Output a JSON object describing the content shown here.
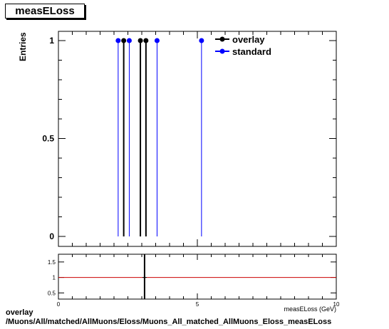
{
  "chart_data": [
    {
      "type": "scatter",
      "title": "measELoss",
      "ylabel": "Entries",
      "xlim": [
        0,
        10
      ],
      "ylim": [
        0,
        1.05
      ],
      "yticks": [
        0,
        0.5,
        1
      ],
      "ytick_labels": [
        "0",
        "0.5",
        "1"
      ],
      "legend": {
        "position": "top-right"
      },
      "series": [
        {
          "name": "overlay",
          "color": "#000000",
          "x": [
            2.35,
            2.95,
            3.15
          ],
          "y": [
            1,
            1,
            1
          ]
        },
        {
          "name": "standard",
          "color": "#0000ff",
          "x": [
            2.15,
            2.55,
            3.55,
            5.15
          ],
          "y": [
            1,
            1,
            1,
            1
          ]
        }
      ]
    },
    {
      "type": "line",
      "xlabel": "measELoss (GeV)",
      "xlim": [
        0,
        10
      ],
      "ylim": [
        0.3,
        1.75
      ],
      "xticks": [
        0,
        5,
        10
      ],
      "xtick_labels": [
        "0",
        "5",
        "10"
      ],
      "yticks": [
        0.5,
        1,
        1.5
      ],
      "ytick_labels": [
        "0.5",
        "1",
        "1.5"
      ],
      "reference_line": {
        "y": 1,
        "color": "#cc0000"
      },
      "series": [
        {
          "name": "",
          "color": "#000000",
          "x": [
            3.1
          ],
          "y": [
            1
          ]
        }
      ]
    }
  ],
  "footer": {
    "line1": "overlay",
    "line2": "/Muons/All/matched/AllMuons/Eloss/Muons_All_matched_AllMuons_Eloss_measELoss"
  }
}
